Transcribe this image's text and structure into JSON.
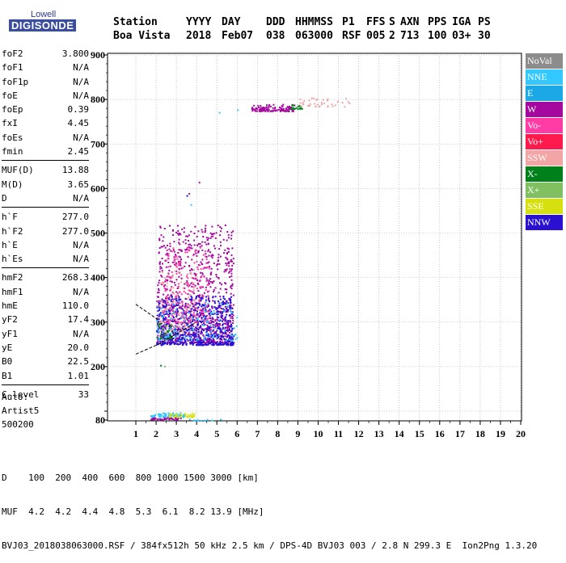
{
  "logo": {
    "line1": "Lowell",
    "line2": "DIGISONDE"
  },
  "header": {
    "labels": [
      "Station",
      "YYYY",
      "DAY",
      "DDD",
      "HHMMSS",
      "P1",
      "FFS",
      "S",
      "AXN",
      "PPS",
      "IGA",
      "PS"
    ],
    "values": [
      "Boa Vista",
      "2018",
      "Feb07",
      "038",
      "063000",
      "RSF",
      "005",
      "2",
      "713",
      "100",
      "03+",
      "30"
    ]
  },
  "params": {
    "group1": [
      {
        "k": "foF2",
        "v": "3.800"
      },
      {
        "k": "foF1",
        "v": "N/A"
      },
      {
        "k": "foF1p",
        "v": "N/A"
      },
      {
        "k": "foE",
        "v": "N/A"
      },
      {
        "k": "foEp",
        "v": "0.39"
      },
      {
        "k": "fxI",
        "v": "4.45"
      },
      {
        "k": "foEs",
        "v": "N/A"
      },
      {
        "k": "fmin",
        "v": "2.45"
      }
    ],
    "group2": [
      {
        "k": "MUF(D)",
        "v": "13.88"
      },
      {
        "k": "M(D)",
        "v": "3.65"
      },
      {
        "k": "D",
        "v": "N/A"
      }
    ],
    "group3": [
      {
        "k": "h`F",
        "v": "277.0"
      },
      {
        "k": "h`F2",
        "v": "277.0"
      },
      {
        "k": "h`E",
        "v": "N/A"
      },
      {
        "k": "h`Es",
        "v": "N/A"
      }
    ],
    "group4": [
      {
        "k": "hmF2",
        "v": "268.3"
      },
      {
        "k": "hmF1",
        "v": "N/A"
      },
      {
        "k": "hmE",
        "v": "110.0"
      },
      {
        "k": "yF2",
        "v": "17.4"
      },
      {
        "k": "yF1",
        "v": "N/A"
      },
      {
        "k": "yE",
        "v": "20.0"
      },
      {
        "k": "B0",
        "v": "22.5"
      },
      {
        "k": "B1",
        "v": "1.01"
      }
    ],
    "group5": [
      {
        "k": "C-level",
        "v": "33"
      }
    ]
  },
  "auto": {
    "line1": "Auto:",
    "line2": "Artist5",
    "line3": "500200"
  },
  "footer": {
    "row1": "D    100  200  400  600  800 1000 1500 3000 [km]",
    "row2": "MUF  4.2  4.2  4.4  4.8  5.3  6.1  8.2 13.9 [MHz]",
    "row3": "BVJ03_2018038063000.RSF / 384fx512h 50 kHz 2.5 km / DPS-4D BVJ03 003 / 2.8 N 299.3 E  Ion2Png 1.3.20"
  },
  "legend": [
    {
      "label": "NoVal",
      "color": "#8c8c8c"
    },
    {
      "label": "NNE",
      "color": "#33c8ff"
    },
    {
      "label": "E",
      "color": "#1aa9e6"
    },
    {
      "label": "W",
      "color": "#a5089e"
    },
    {
      "label": "Vo-",
      "color": "#ff3ca5"
    },
    {
      "label": "Vo+",
      "color": "#ff1a4d"
    },
    {
      "label": "SSW",
      "color": "#f2a5a5"
    },
    {
      "label": "X-",
      "color": "#00801a"
    },
    {
      "label": "X+",
      "color": "#80c060"
    },
    {
      "label": "SSE",
      "color": "#d6e00f"
    },
    {
      "label": "NNW",
      "color": "#2a10d0"
    }
  ],
  "chart_data": {
    "type": "scatter",
    "xlim": [
      1,
      20
    ],
    "ylim": [
      80,
      900
    ],
    "x_ticks": [
      1,
      2,
      3,
      4,
      5,
      6,
      7,
      8,
      9,
      10,
      11,
      12,
      13,
      14,
      15,
      16,
      17,
      18,
      19,
      20
    ],
    "y_ticks": [
      80,
      100,
      200,
      300,
      400,
      500,
      600,
      700,
      800,
      900
    ],
    "grid": true,
    "clusters": [
      {
        "series": "W",
        "x_range": [
          2.0,
          5.8
        ],
        "y_range": [
          255,
          520
        ],
        "count": 900
      },
      {
        "series": "NNW",
        "x_range": [
          2.0,
          5.8
        ],
        "y_range": [
          250,
          360
        ],
        "count": 700
      },
      {
        "series": "Vo-",
        "x_range": [
          2.3,
          4.6
        ],
        "y_range": [
          300,
          470
        ],
        "count": 180
      },
      {
        "series": "SSW",
        "x_range": [
          2.1,
          4.0
        ],
        "y_range": [
          280,
          420
        ],
        "count": 120
      },
      {
        "series": "NNE",
        "x_range": [
          2.0,
          6.0
        ],
        "y_range": [
          260,
          350
        ],
        "count": 120
      },
      {
        "series": "X-",
        "x_range": [
          2.0,
          2.8
        ],
        "y_range": [
          265,
          300
        ],
        "count": 30
      },
      {
        "series": "W",
        "x_range": [
          6.7,
          8.8
        ],
        "y_range": [
          775,
          790
        ],
        "count": 120
      },
      {
        "series": "X-",
        "x_range": [
          8.6,
          9.2
        ],
        "y_range": [
          780,
          790
        ],
        "count": 20
      },
      {
        "series": "SSW",
        "x_range": [
          9.0,
          11.6
        ],
        "y_range": [
          785,
          805
        ],
        "count": 40
      },
      {
        "series": "NNE",
        "x_range": [
          1.7,
          3.4
        ],
        "y_range": [
          88,
          98
        ],
        "count": 80
      },
      {
        "series": "SSE",
        "x_range": [
          2.6,
          3.9
        ],
        "y_range": [
          88,
          97
        ],
        "count": 40
      },
      {
        "series": "W",
        "x_range": [
          1.7,
          3.2
        ],
        "y_range": [
          82,
          86
        ],
        "count": 40
      },
      {
        "series": "NNE",
        "x_range": [
          3.5,
          5.2
        ],
        "y_range": [
          80,
          83
        ],
        "count": 15
      }
    ],
    "outliers": [
      {
        "series": "W",
        "x": 4.1,
        "y": 615
      },
      {
        "series": "W",
        "x": 3.6,
        "y": 590
      },
      {
        "series": "NNW",
        "x": 3.5,
        "y": 585
      },
      {
        "series": "NNE",
        "x": 5.1,
        "y": 772
      },
      {
        "series": "NNE",
        "x": 6.0,
        "y": 778
      },
      {
        "series": "NNE",
        "x": 3.7,
        "y": 565
      },
      {
        "series": "X-",
        "x": 2.2,
        "y": 204
      },
      {
        "series": "X+",
        "x": 2.4,
        "y": 202
      }
    ],
    "profile_lines": [
      {
        "x": [
          1.0,
          2.1
        ],
        "y": [
          340,
          305
        ]
      },
      {
        "x": [
          1.0,
          2.1
        ],
        "y": [
          228,
          250
        ]
      },
      {
        "x": [
          2.1,
          4.0
        ],
        "y": [
          250,
          300
        ]
      }
    ]
  }
}
